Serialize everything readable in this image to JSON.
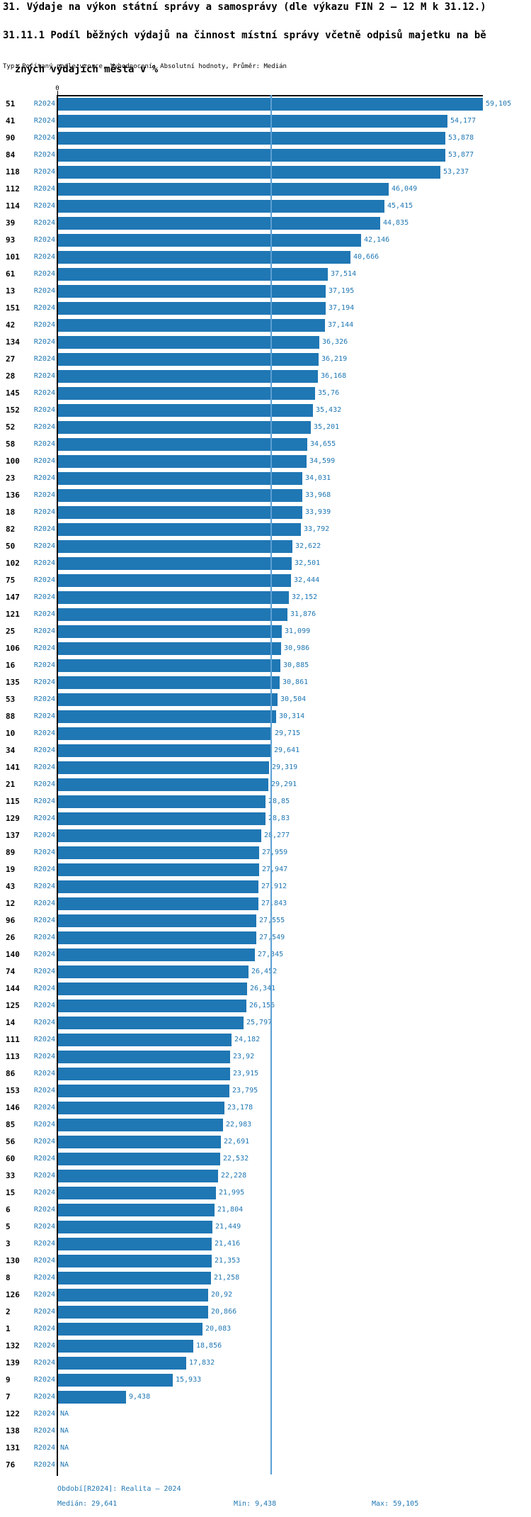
{
  "header": {
    "title": "31. Výdaje na výkon státní správy a samosprávy (dle výkazu FIN 2 – 12 M k 31.12.)",
    "subtitle_line1": "31.11.1 Podíl běžných výdajů na činnost místní správy včetně odpisů majetku na bě",
    "subtitle_line2": "žných výdajích města v %",
    "meta": "Typ: Počítaný podle vzorce, Vyhodnocení: Absolutní hodnoty, Průměr: Medián"
  },
  "axis": {
    "zero_label": "0"
  },
  "period_label": "R2024",
  "rows": [
    {
      "id": "51",
      "label": "59,105",
      "v": 59.105
    },
    {
      "id": "41",
      "label": "54,177",
      "v": 54.177
    },
    {
      "id": "90",
      "label": "53,878",
      "v": 53.878
    },
    {
      "id": "84",
      "label": "53,877",
      "v": 53.877
    },
    {
      "id": "118",
      "label": "53,237",
      "v": 53.237
    },
    {
      "id": "112",
      "label": "46,049",
      "v": 46.049
    },
    {
      "id": "114",
      "label": "45,415",
      "v": 45.415
    },
    {
      "id": "39",
      "label": "44,835",
      "v": 44.835
    },
    {
      "id": "93",
      "label": "42,146",
      "v": 42.146
    },
    {
      "id": "101",
      "label": "40,666",
      "v": 40.666
    },
    {
      "id": "61",
      "label": "37,514",
      "v": 37.514
    },
    {
      "id": "13",
      "label": "37,195",
      "v": 37.195
    },
    {
      "id": "151",
      "label": "37,194",
      "v": 37.194
    },
    {
      "id": "42",
      "label": "37,144",
      "v": 37.144
    },
    {
      "id": "134",
      "label": "36,326",
      "v": 36.326
    },
    {
      "id": "27",
      "label": "36,219",
      "v": 36.219
    },
    {
      "id": "28",
      "label": "36,168",
      "v": 36.168
    },
    {
      "id": "145",
      "label": "35,76",
      "v": 35.76
    },
    {
      "id": "152",
      "label": "35,432",
      "v": 35.432
    },
    {
      "id": "52",
      "label": "35,201",
      "v": 35.201
    },
    {
      "id": "58",
      "label": "34,655",
      "v": 34.655
    },
    {
      "id": "100",
      "label": "34,599",
      "v": 34.599
    },
    {
      "id": "23",
      "label": "34,031",
      "v": 34.031
    },
    {
      "id": "136",
      "label": "33,968",
      "v": 33.968
    },
    {
      "id": "18",
      "label": "33,939",
      "v": 33.939
    },
    {
      "id": "82",
      "label": "33,792",
      "v": 33.792
    },
    {
      "id": "50",
      "label": "32,622",
      "v": 32.622
    },
    {
      "id": "102",
      "label": "32,501",
      "v": 32.501
    },
    {
      "id": "75",
      "label": "32,444",
      "v": 32.444
    },
    {
      "id": "147",
      "label": "32,152",
      "v": 32.152
    },
    {
      "id": "121",
      "label": "31,876",
      "v": 31.876
    },
    {
      "id": "25",
      "label": "31,099",
      "v": 31.099
    },
    {
      "id": "106",
      "label": "30,986",
      "v": 30.986
    },
    {
      "id": "16",
      "label": "30,885",
      "v": 30.885
    },
    {
      "id": "135",
      "label": "30,861",
      "v": 30.861
    },
    {
      "id": "53",
      "label": "30,504",
      "v": 30.504
    },
    {
      "id": "88",
      "label": "30,314",
      "v": 30.314
    },
    {
      "id": "10",
      "label": "29,715",
      "v": 29.715
    },
    {
      "id": "34",
      "label": "29,641",
      "v": 29.641
    },
    {
      "id": "141",
      "label": "29,319",
      "v": 29.319
    },
    {
      "id": "21",
      "label": "29,291",
      "v": 29.291
    },
    {
      "id": "115",
      "label": "28,85",
      "v": 28.85
    },
    {
      "id": "129",
      "label": "28,83",
      "v": 28.83
    },
    {
      "id": "137",
      "label": "28,277",
      "v": 28.277
    },
    {
      "id": "89",
      "label": "27,959",
      "v": 27.959
    },
    {
      "id": "19",
      "label": "27,947",
      "v": 27.947
    },
    {
      "id": "43",
      "label": "27,912",
      "v": 27.912
    },
    {
      "id": "12",
      "label": "27,843",
      "v": 27.843
    },
    {
      "id": "96",
      "label": "27,555",
      "v": 27.555
    },
    {
      "id": "26",
      "label": "27,549",
      "v": 27.549
    },
    {
      "id": "140",
      "label": "27,345",
      "v": 27.345
    },
    {
      "id": "74",
      "label": "26,452",
      "v": 26.452
    },
    {
      "id": "144",
      "label": "26,341",
      "v": 26.341
    },
    {
      "id": "125",
      "label": "26,156",
      "v": 26.156
    },
    {
      "id": "14",
      "label": "25,797",
      "v": 25.797
    },
    {
      "id": "111",
      "label": "24,182",
      "v": 24.182
    },
    {
      "id": "113",
      "label": "23,92",
      "v": 23.92
    },
    {
      "id": "86",
      "label": "23,915",
      "v": 23.915
    },
    {
      "id": "153",
      "label": "23,795",
      "v": 23.795
    },
    {
      "id": "146",
      "label": "23,178",
      "v": 23.178
    },
    {
      "id": "85",
      "label": "22,983",
      "v": 22.983
    },
    {
      "id": "56",
      "label": "22,691",
      "v": 22.691
    },
    {
      "id": "60",
      "label": "22,532",
      "v": 22.532
    },
    {
      "id": "33",
      "label": "22,228",
      "v": 22.228
    },
    {
      "id": "15",
      "label": "21,995",
      "v": 21.995
    },
    {
      "id": "6",
      "label": "21,804",
      "v": 21.804
    },
    {
      "id": "5",
      "label": "21,449",
      "v": 21.449
    },
    {
      "id": "3",
      "label": "21,416",
      "v": 21.416
    },
    {
      "id": "130",
      "label": "21,353",
      "v": 21.353
    },
    {
      "id": "8",
      "label": "21,258",
      "v": 21.258
    },
    {
      "id": "126",
      "label": "20,92",
      "v": 20.92
    },
    {
      "id": "2",
      "label": "20,866",
      "v": 20.866
    },
    {
      "id": "1",
      "label": "20,083",
      "v": 20.083
    },
    {
      "id": "132",
      "label": "18,856",
      "v": 18.856
    },
    {
      "id": "139",
      "label": "17,832",
      "v": 17.832
    },
    {
      "id": "9",
      "label": "15,933",
      "v": 15.933
    },
    {
      "id": "7",
      "label": "9,438",
      "v": 9.438
    },
    {
      "id": "122",
      "label": "NA",
      "v": null
    },
    {
      "id": "138",
      "label": "NA",
      "v": null
    },
    {
      "id": "131",
      "label": "NA",
      "v": null
    },
    {
      "id": "76",
      "label": "NA",
      "v": null
    }
  ],
  "footer": {
    "period_line": "Období[R2024]: Realita – 2024",
    "median": "Medián: 29,641",
    "min": "Min: 9,438",
    "max": "Max: 59,105"
  },
  "colors": {
    "bar": "#1f77b4",
    "text_blue": "#1f77b4",
    "median_line": "#5b9fd4",
    "axis": "#000000"
  },
  "chart_data": {
    "type": "bar",
    "orientation": "horizontal",
    "title": "31. Výdaje na výkon státní správy a samosprávy (dle výkazu FIN 2 – 12 M k 31.12.)",
    "subtitle": "31.11.1 Podíl běžných výdajů na činnost místní správy včetně odpisů majetku na běžných výdajích města v %",
    "meta": "Typ: Počítaný podle vzorce, Vyhodnocení: Absolutní hodnoty, Průměr: Medián",
    "xlabel": "",
    "ylabel": "",
    "xlim": [
      0,
      59.105
    ],
    "grid": false,
    "categories": [
      "51",
      "41",
      "90",
      "84",
      "118",
      "112",
      "114",
      "39",
      "93",
      "101",
      "61",
      "13",
      "151",
      "42",
      "134",
      "27",
      "28",
      "145",
      "152",
      "52",
      "58",
      "100",
      "23",
      "136",
      "18",
      "82",
      "50",
      "102",
      "75",
      "147",
      "121",
      "25",
      "106",
      "16",
      "135",
      "53",
      "88",
      "10",
      "34",
      "141",
      "21",
      "115",
      "129",
      "137",
      "89",
      "19",
      "43",
      "12",
      "96",
      "26",
      "140",
      "74",
      "144",
      "125",
      "14",
      "111",
      "113",
      "86",
      "153",
      "146",
      "85",
      "56",
      "60",
      "33",
      "15",
      "6",
      "5",
      "3",
      "130",
      "8",
      "126",
      "2",
      "1",
      "132",
      "139",
      "9",
      "7",
      "122",
      "138",
      "131",
      "76"
    ],
    "series": [
      {
        "name": "R2024",
        "values": [
          59.105,
          54.177,
          53.878,
          53.877,
          53.237,
          46.049,
          45.415,
          44.835,
          42.146,
          40.666,
          37.514,
          37.195,
          37.194,
          37.144,
          36.326,
          36.219,
          36.168,
          35.76,
          35.432,
          35.201,
          34.655,
          34.599,
          34.031,
          33.968,
          33.939,
          33.792,
          32.622,
          32.501,
          32.444,
          32.152,
          31.876,
          31.099,
          30.986,
          30.885,
          30.861,
          30.504,
          30.314,
          29.715,
          29.641,
          29.319,
          29.291,
          28.85,
          28.83,
          28.277,
          27.959,
          27.947,
          27.912,
          27.843,
          27.555,
          27.549,
          27.345,
          26.452,
          26.341,
          26.156,
          25.797,
          24.182,
          23.92,
          23.915,
          23.795,
          23.178,
          22.983,
          22.691,
          22.532,
          22.228,
          21.995,
          21.804,
          21.449,
          21.416,
          21.353,
          21.258,
          20.92,
          20.866,
          20.083,
          18.856,
          17.832,
          15.933,
          9.438,
          null,
          null,
          null,
          null
        ]
      }
    ],
    "median": 29.641,
    "min": 9.438,
    "max": 59.105,
    "median_line": true,
    "period": "Realita – 2024"
  }
}
